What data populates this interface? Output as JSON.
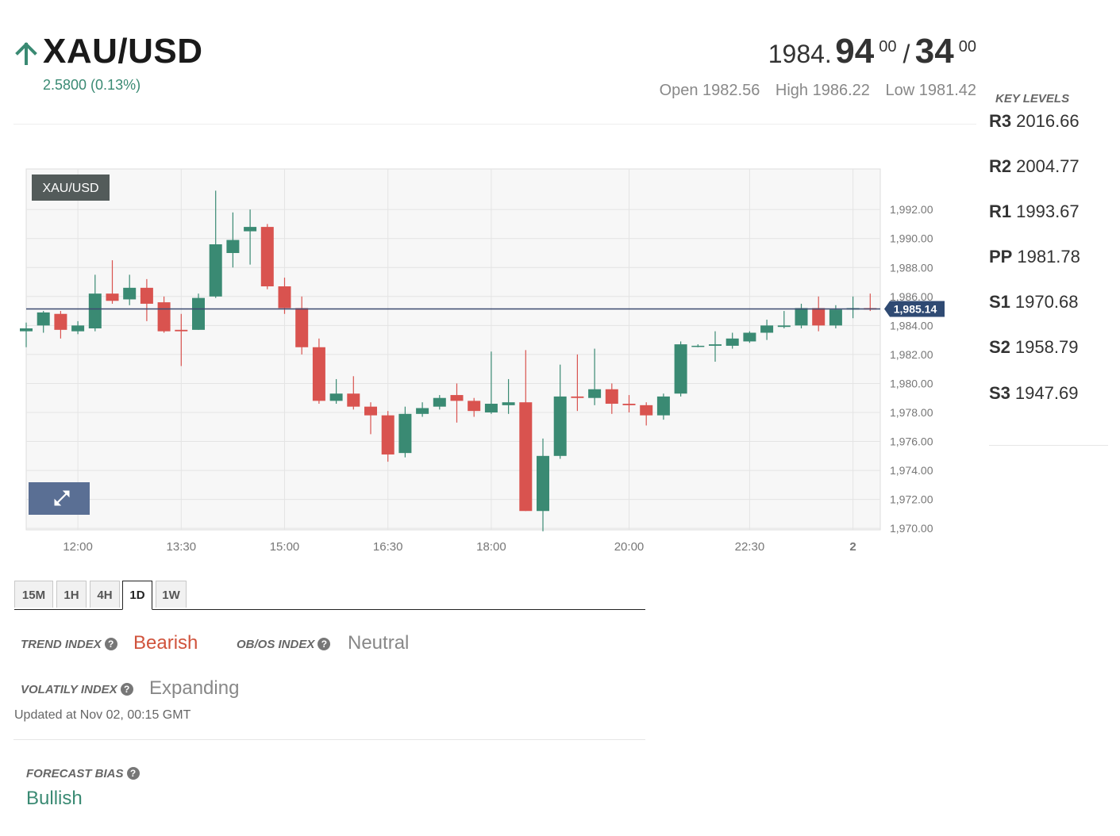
{
  "header": {
    "symbol": "XAU/USD",
    "direction_icon": "arrow-up-icon",
    "change": "2.5800 (0.13%)",
    "bid_prefix": "1984.",
    "bid_main": "94",
    "bid_sup": "00",
    "separator": "/",
    "ask_main": "34",
    "ask_sup": "00",
    "open": "Open 1982.56",
    "high": "High 1986.22",
    "low": "Low 1981.42"
  },
  "key_levels": {
    "title": "KEY LEVELS",
    "levels": [
      {
        "name": "R3",
        "value": "2016.66"
      },
      {
        "name": "R2",
        "value": "2004.77"
      },
      {
        "name": "R1",
        "value": "1993.67"
      },
      {
        "name": "PP",
        "value": "1981.78"
      },
      {
        "name": "S1",
        "value": "1970.68"
      },
      {
        "name": "S2",
        "value": "1958.79"
      },
      {
        "name": "S3",
        "value": "1947.69"
      }
    ]
  },
  "chart_data": {
    "type": "candlestick",
    "title": "XAU/USD",
    "y_ticks": [
      "1,992.00",
      "1,990.00",
      "1,988.00",
      "1,986.00",
      "1,984.00",
      "1,982.00",
      "1,980.00",
      "1,978.00",
      "1,976.00",
      "1,974.00",
      "1,972.00",
      "1,970.00"
    ],
    "y_range": [
      1969.9,
      1994.8
    ],
    "x_ticks": [
      "12:00",
      "13:30",
      "15:00",
      "16:30",
      "18:00",
      "20:00",
      "22:30",
      "2"
    ],
    "current_price": 1985.14,
    "current_price_label": "1,985.14",
    "up_color": "#3a8a73",
    "down_color": "#d9534f",
    "expand_icon": "expand-icon",
    "candles": [
      {
        "o": 1983.6,
        "h": 1984.2,
        "l": 1982.5,
        "c": 1983.8
      },
      {
        "o": 1984.0,
        "h": 1985.0,
        "l": 1983.5,
        "c": 1984.9
      },
      {
        "o": 1984.8,
        "h": 1985.0,
        "l": 1983.1,
        "c": 1983.7
      },
      {
        "o": 1983.6,
        "h": 1984.3,
        "l": 1983.4,
        "c": 1984.0
      },
      {
        "o": 1983.8,
        "h": 1987.5,
        "l": 1983.6,
        "c": 1986.2
      },
      {
        "o": 1986.2,
        "h": 1988.5,
        "l": 1985.5,
        "c": 1985.7
      },
      {
        "o": 1985.8,
        "h": 1987.5,
        "l": 1985.4,
        "c": 1986.6
      },
      {
        "o": 1986.6,
        "h": 1987.2,
        "l": 1984.3,
        "c": 1985.5
      },
      {
        "o": 1985.6,
        "h": 1986.0,
        "l": 1983.5,
        "c": 1983.6
      },
      {
        "o": 1983.7,
        "h": 1984.8,
        "l": 1981.2,
        "c": 1983.6
      },
      {
        "o": 1983.7,
        "h": 1986.2,
        "l": 1983.7,
        "c": 1985.9
      },
      {
        "o": 1986.0,
        "h": 1993.3,
        "l": 1985.9,
        "c": 1989.6
      },
      {
        "o": 1989.0,
        "h": 1991.8,
        "l": 1988.0,
        "c": 1989.9
      },
      {
        "o": 1990.5,
        "h": 1992.0,
        "l": 1988.2,
        "c": 1990.8
      },
      {
        "o": 1990.8,
        "h": 1991.0,
        "l": 1986.5,
        "c": 1986.7
      },
      {
        "o": 1986.7,
        "h": 1987.3,
        "l": 1984.8,
        "c": 1985.2
      },
      {
        "o": 1985.2,
        "h": 1986.0,
        "l": 1982.0,
        "c": 1982.5
      },
      {
        "o": 1982.5,
        "h": 1983.1,
        "l": 1978.6,
        "c": 1978.8
      },
      {
        "o": 1978.8,
        "h": 1980.3,
        "l": 1978.6,
        "c": 1979.3
      },
      {
        "o": 1979.3,
        "h": 1980.5,
        "l": 1978.2,
        "c": 1978.4
      },
      {
        "o": 1978.4,
        "h": 1978.7,
        "l": 1976.5,
        "c": 1977.8
      },
      {
        "o": 1977.8,
        "h": 1978.1,
        "l": 1974.6,
        "c": 1975.1
      },
      {
        "o": 1975.2,
        "h": 1978.4,
        "l": 1974.9,
        "c": 1977.9
      },
      {
        "o": 1977.9,
        "h": 1978.7,
        "l": 1977.7,
        "c": 1978.3
      },
      {
        "o": 1978.4,
        "h": 1979.2,
        "l": 1978.2,
        "c": 1979.0
      },
      {
        "o": 1979.2,
        "h": 1980.0,
        "l": 1977.3,
        "c": 1978.8
      },
      {
        "o": 1978.8,
        "h": 1979.0,
        "l": 1977.7,
        "c": 1978.1
      },
      {
        "o": 1978.0,
        "h": 1982.2,
        "l": 1977.9,
        "c": 1978.6
      },
      {
        "o": 1978.5,
        "h": 1980.3,
        "l": 1977.9,
        "c": 1978.7
      },
      {
        "o": 1978.7,
        "h": 1982.3,
        "l": 1971.2,
        "c": 1971.2
      },
      {
        "o": 1971.2,
        "h": 1976.2,
        "l": 1969.8,
        "c": 1975.0
      },
      {
        "o": 1975.0,
        "h": 1981.3,
        "l": 1974.8,
        "c": 1979.1
      },
      {
        "o": 1979.1,
        "h": 1982.0,
        "l": 1978.1,
        "c": 1979.0
      },
      {
        "o": 1979.0,
        "h": 1982.4,
        "l": 1978.5,
        "c": 1979.6
      },
      {
        "o": 1979.6,
        "h": 1980.0,
        "l": 1977.9,
        "c": 1978.6
      },
      {
        "o": 1978.6,
        "h": 1979.2,
        "l": 1978.0,
        "c": 1978.5
      },
      {
        "o": 1978.5,
        "h": 1978.7,
        "l": 1977.1,
        "c": 1977.8
      },
      {
        "o": 1977.8,
        "h": 1979.3,
        "l": 1977.5,
        "c": 1979.1
      },
      {
        "o": 1979.3,
        "h": 1982.9,
        "l": 1979.1,
        "c": 1982.7
      },
      {
        "o": 1982.6,
        "h": 1982.7,
        "l": 1982.5,
        "c": 1982.6
      },
      {
        "o": 1982.6,
        "h": 1983.6,
        "l": 1981.5,
        "c": 1982.7
      },
      {
        "o": 1982.6,
        "h": 1983.5,
        "l": 1982.4,
        "c": 1983.1
      },
      {
        "o": 1982.9,
        "h": 1983.6,
        "l": 1982.8,
        "c": 1983.5
      },
      {
        "o": 1983.5,
        "h": 1984.4,
        "l": 1983.0,
        "c": 1984.0
      },
      {
        "o": 1983.9,
        "h": 1985.0,
        "l": 1983.8,
        "c": 1984.0
      },
      {
        "o": 1984.0,
        "h": 1985.5,
        "l": 1983.8,
        "c": 1985.2
      },
      {
        "o": 1985.2,
        "h": 1986.0,
        "l": 1983.6,
        "c": 1984.0
      },
      {
        "o": 1984.0,
        "h": 1985.4,
        "l": 1983.8,
        "c": 1985.1
      },
      {
        "o": 1985.1,
        "h": 1986.0,
        "l": 1984.5,
        "c": 1985.2
      },
      {
        "o": 1985.2,
        "h": 1986.2,
        "l": 1985.0,
        "c": 1985.1
      }
    ]
  },
  "timeframes": [
    "15M",
    "1H",
    "4H",
    "1D",
    "1W"
  ],
  "active_timeframe": "1D",
  "indicators": {
    "trend_label": "TREND INDEX",
    "trend_value": "Bearish",
    "trend_color": "#d0533c",
    "obos_label": "OB/OS INDEX",
    "obos_value": "Neutral",
    "obos_color": "#888888",
    "volatility_label": "VOLATILY INDEX",
    "volatility_value": "Expanding",
    "volatility_color": "#888888",
    "updated": "Updated at Nov 02, 00:15 GMT",
    "forecast_label": "FORECAST BIAS",
    "forecast_value": "Bullish",
    "forecast_color": "#3a8a73"
  }
}
